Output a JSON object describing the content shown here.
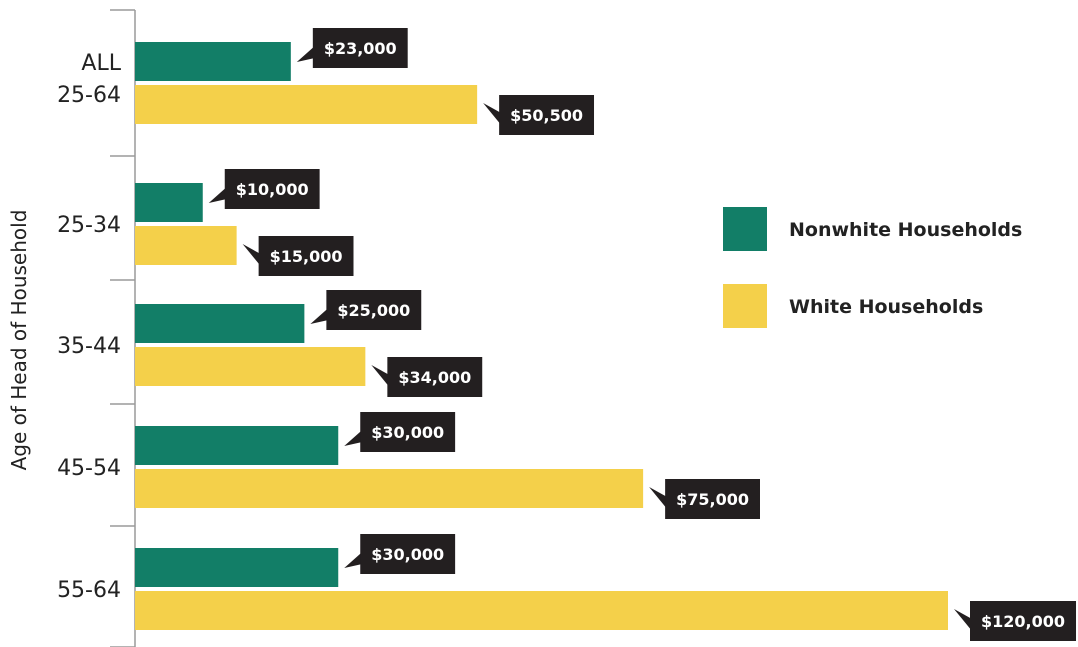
{
  "chart_data": {
    "type": "bar",
    "orientation": "horizontal",
    "ylabel": "Age of Head of Household",
    "categories": [
      [
        "ALL",
        "25-64"
      ],
      [
        "25-34"
      ],
      [
        "35-44"
      ],
      [
        "45-54"
      ],
      [
        "55-64"
      ]
    ],
    "series": [
      {
        "name": "Nonwhite Households",
        "color": "#127e67",
        "values": [
          23000,
          10000,
          25000,
          30000,
          30000
        ],
        "labels": [
          "$23,000",
          "$10,000",
          "$25,000",
          "$30,000",
          "$30,000"
        ]
      },
      {
        "name": "White Households",
        "color": "#f4d04a",
        "values": [
          50500,
          15000,
          34000,
          75000,
          120000
        ],
        "labels": [
          "$50,500",
          "$15,000",
          "$34,000",
          "$75,000",
          "$120,000"
        ]
      }
    ],
    "xlim": [
      0,
      120000
    ],
    "grid": false,
    "legend": "center-right",
    "label_box_color": "#231f20"
  }
}
